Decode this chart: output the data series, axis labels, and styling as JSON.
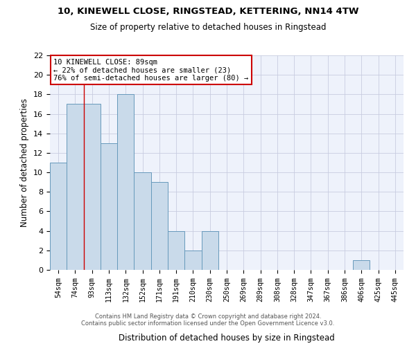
{
  "title1": "10, KINEWELL CLOSE, RINGSTEAD, KETTERING, NN14 4TW",
  "title2": "Size of property relative to detached houses in Ringstead",
  "xlabel": "Distribution of detached houses by size in Ringstead",
  "ylabel": "Number of detached properties",
  "categories": [
    "54sqm",
    "74sqm",
    "93sqm",
    "113sqm",
    "132sqm",
    "152sqm",
    "171sqm",
    "191sqm",
    "210sqm",
    "230sqm",
    "250sqm",
    "269sqm",
    "289sqm",
    "308sqm",
    "328sqm",
    "347sqm",
    "367sqm",
    "386sqm",
    "406sqm",
    "425sqm",
    "445sqm"
  ],
  "values": [
    11,
    17,
    17,
    13,
    18,
    10,
    9,
    4,
    2,
    4,
    0,
    0,
    0,
    0,
    0,
    0,
    0,
    0,
    1,
    0,
    0
  ],
  "bar_color": "#c9daea",
  "bar_edge_color": "#6699bb",
  "background_color": "#eef2fb",
  "grid_color": "#c8cce0",
  "red_line_x": 1.5,
  "annotation_line1": "10 KINEWELL CLOSE: 89sqm",
  "annotation_line2": "← 22% of detached houses are smaller (23)",
  "annotation_line3": "76% of semi-detached houses are larger (80) →",
  "annotation_box_color": "#ffffff",
  "annotation_box_edge": "#cc0000",
  "footer1": "Contains HM Land Registry data © Crown copyright and database right 2024.",
  "footer2": "Contains public sector information licensed under the Open Government Licence v3.0.",
  "ylim": [
    0,
    22
  ],
  "yticks": [
    0,
    2,
    4,
    6,
    8,
    10,
    12,
    14,
    16,
    18,
    20,
    22
  ]
}
